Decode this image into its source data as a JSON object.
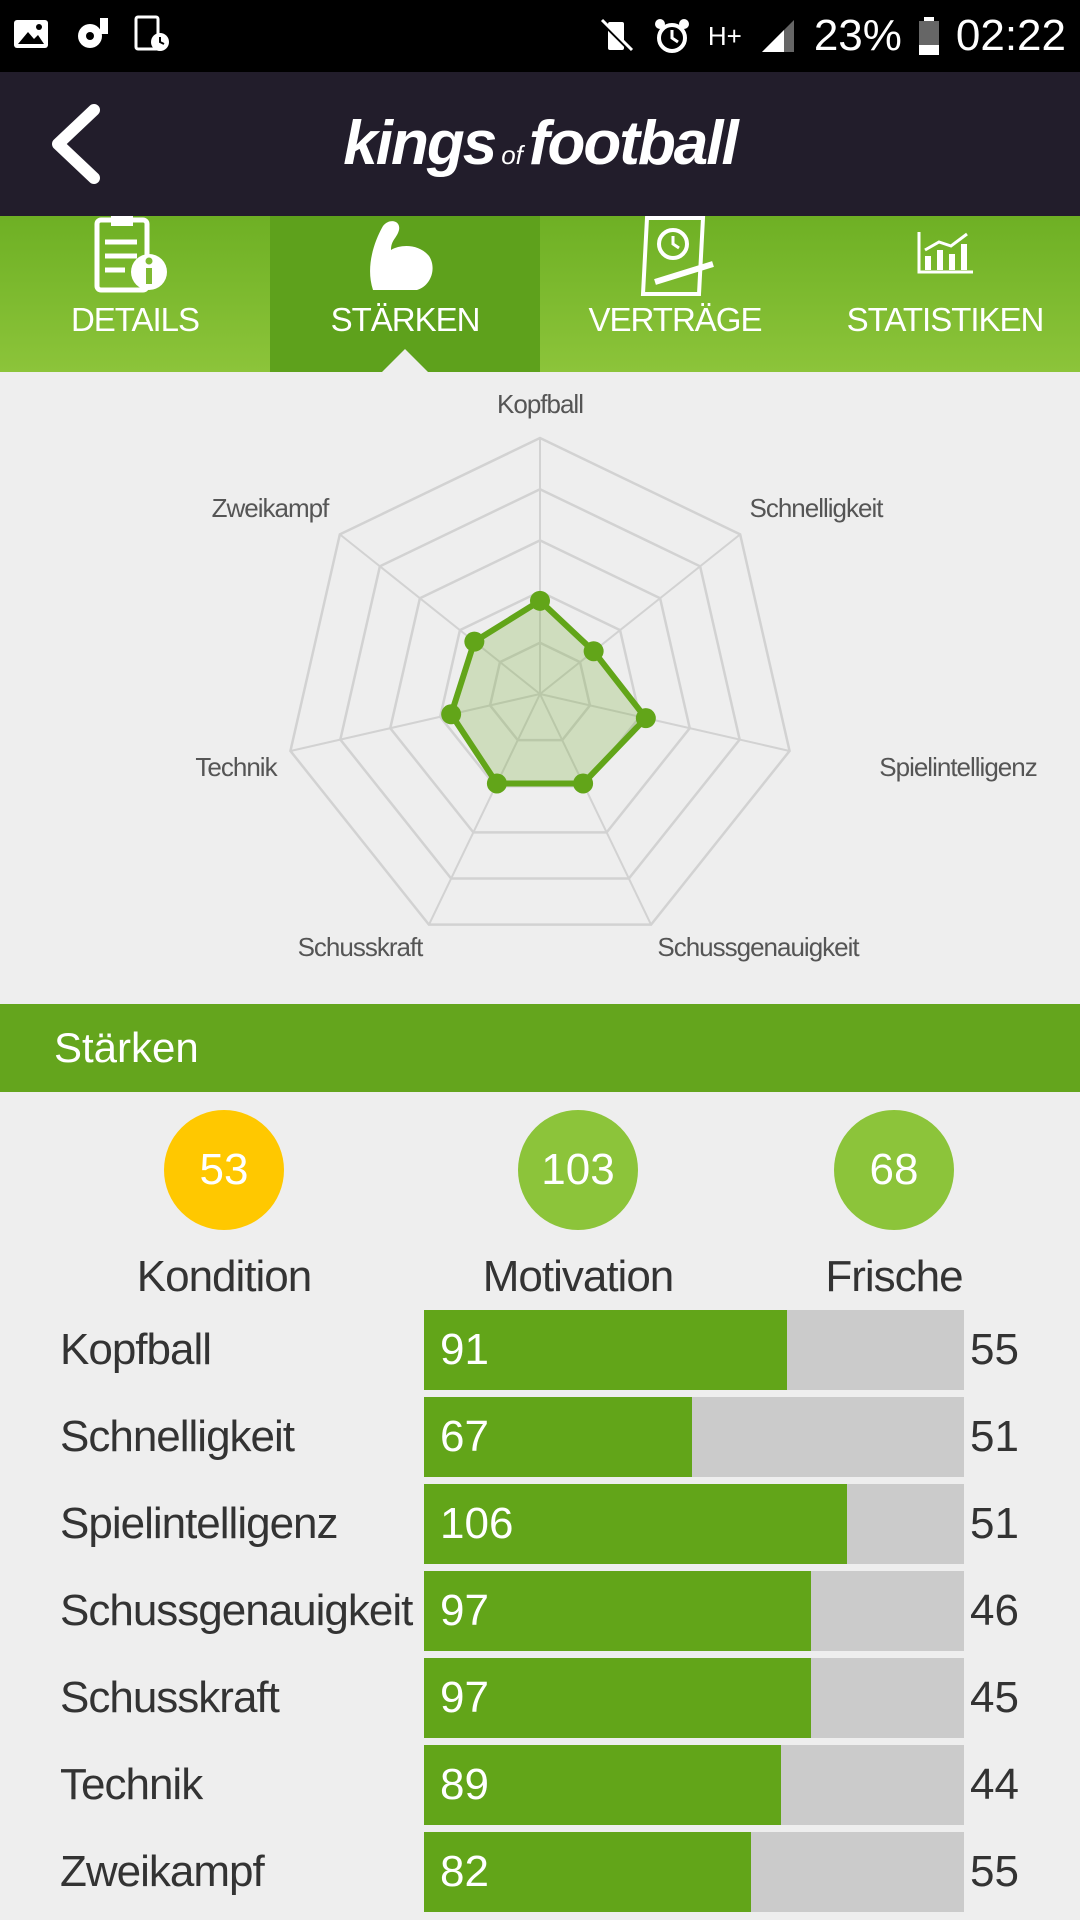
{
  "status_bar": {
    "battery": "23%",
    "time": "02:22",
    "network": "H+",
    "icons_left": [
      "image-icon",
      "settings-alert-icon",
      "tablet-timer-icon"
    ],
    "icons_right": [
      "vibrate-mute-icon",
      "alarm-icon",
      "network-h-plus-icon",
      "signal-icon",
      "battery-icon"
    ]
  },
  "appbar": {
    "logo_part1": "kings",
    "logo_of": "of",
    "logo_part2": "football"
  },
  "tabs": [
    {
      "label": "DETAILS",
      "icon": "clipboard-info-icon",
      "active": false
    },
    {
      "label": "STÄRKEN",
      "icon": "flexed-arm-icon",
      "active": true
    },
    {
      "label": "VERTRÄGE",
      "icon": "contract-icon",
      "active": false
    },
    {
      "label": "STATISTIKEN",
      "icon": "chart-icon",
      "active": false
    }
  ],
  "radar": {
    "labels": [
      "Kopfball",
      "Schnelligkeit",
      "Spielintelligenz",
      "Schussgenauigkeit",
      "Schusskraft",
      "Technik",
      "Zweikampf"
    ],
    "levels": 5,
    "max": 250,
    "values": [
      91,
      67,
      106,
      97,
      97,
      89,
      82
    ],
    "color": "#62a519"
  },
  "section": {
    "title": "Stärken"
  },
  "metrics": [
    {
      "value": "53",
      "label": "Kondition",
      "color": "#ffc800"
    },
    {
      "value": "103",
      "label": "Motivation",
      "color": "#8cc43a"
    },
    {
      "value": "68",
      "label": "Frische",
      "color": "#8cc43a"
    }
  ],
  "attributes": [
    {
      "name": "Kopfball",
      "value": 91,
      "other": "55",
      "fill_fraction": 0.673
    },
    {
      "name": "Schnelligkeit",
      "value": 67,
      "other": "51",
      "fill_fraction": 0.496
    },
    {
      "name": "Spielintelligenz",
      "value": 106,
      "other": "51",
      "fill_fraction": 0.783
    },
    {
      "name": "Schussgenauigkeit",
      "value": 97,
      "other": "46",
      "fill_fraction": 0.717
    },
    {
      "name": "Schusskraft",
      "value": 97,
      "other": "45",
      "fill_fraction": 0.717
    },
    {
      "name": "Technik",
      "value": 89,
      "other": "44",
      "fill_fraction": 0.661
    },
    {
      "name": "Zweikampf",
      "value": 82,
      "other": "55",
      "fill_fraction": 0.606
    }
  ]
}
